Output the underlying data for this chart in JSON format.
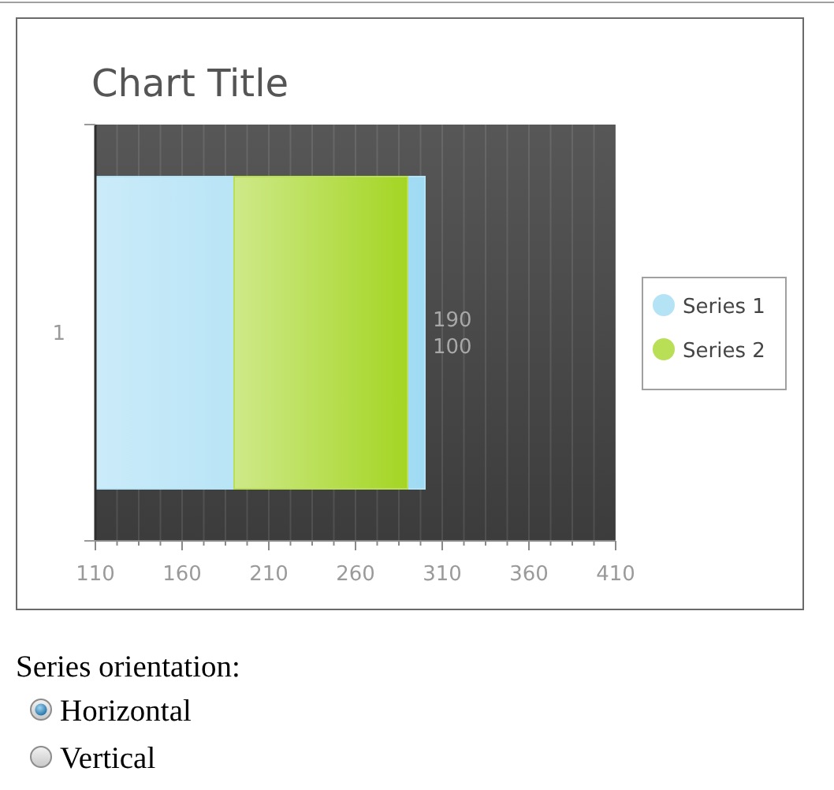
{
  "chart_data": {
    "type": "bar",
    "title": "Chart Title",
    "orientation": "horizontal",
    "categories": [
      "1"
    ],
    "series": [
      {
        "name": "Series 1",
        "color": "#b5e3f6",
        "values": [
          190
        ],
        "base": [
          110
        ]
      },
      {
        "name": "Series 2",
        "color": "#b9df56",
        "values": [
          100
        ],
        "base": [
          190
        ]
      }
    ],
    "xlim": [
      110,
      410
    ],
    "xticks": [
      110,
      {
        "value": 122.5,
        "label": null
      },
      {
        "value": 135,
        "label": null
      },
      {
        "value": 147.5,
        "label": null
      },
      160,
      {
        "value": 172.5,
        "label": null
      },
      {
        "value": 185,
        "label": null
      },
      {
        "value": 197.5,
        "label": null
      },
      210,
      {
        "value": 222.5,
        "label": null
      },
      {
        "value": 235,
        "label": null
      },
      {
        "value": 247.5,
        "label": null
      },
      260,
      {
        "value": 272.5,
        "label": null
      },
      {
        "value": 285,
        "label": null
      },
      {
        "value": 297.5,
        "label": null
      },
      310,
      {
        "value": 322.5,
        "label": null
      },
      {
        "value": 335,
        "label": null
      },
      {
        "value": 347.5,
        "label": null
      },
      360,
      {
        "value": 372.5,
        "label": null
      },
      {
        "value": 385,
        "label": null
      },
      {
        "value": 397.5,
        "label": null
      },
      410
    ],
    "grid": "x",
    "legend": "right",
    "data_labels": true,
    "annotations": [
      "Series orientation:",
      "Horizontal",
      "Vertical"
    ]
  }
}
